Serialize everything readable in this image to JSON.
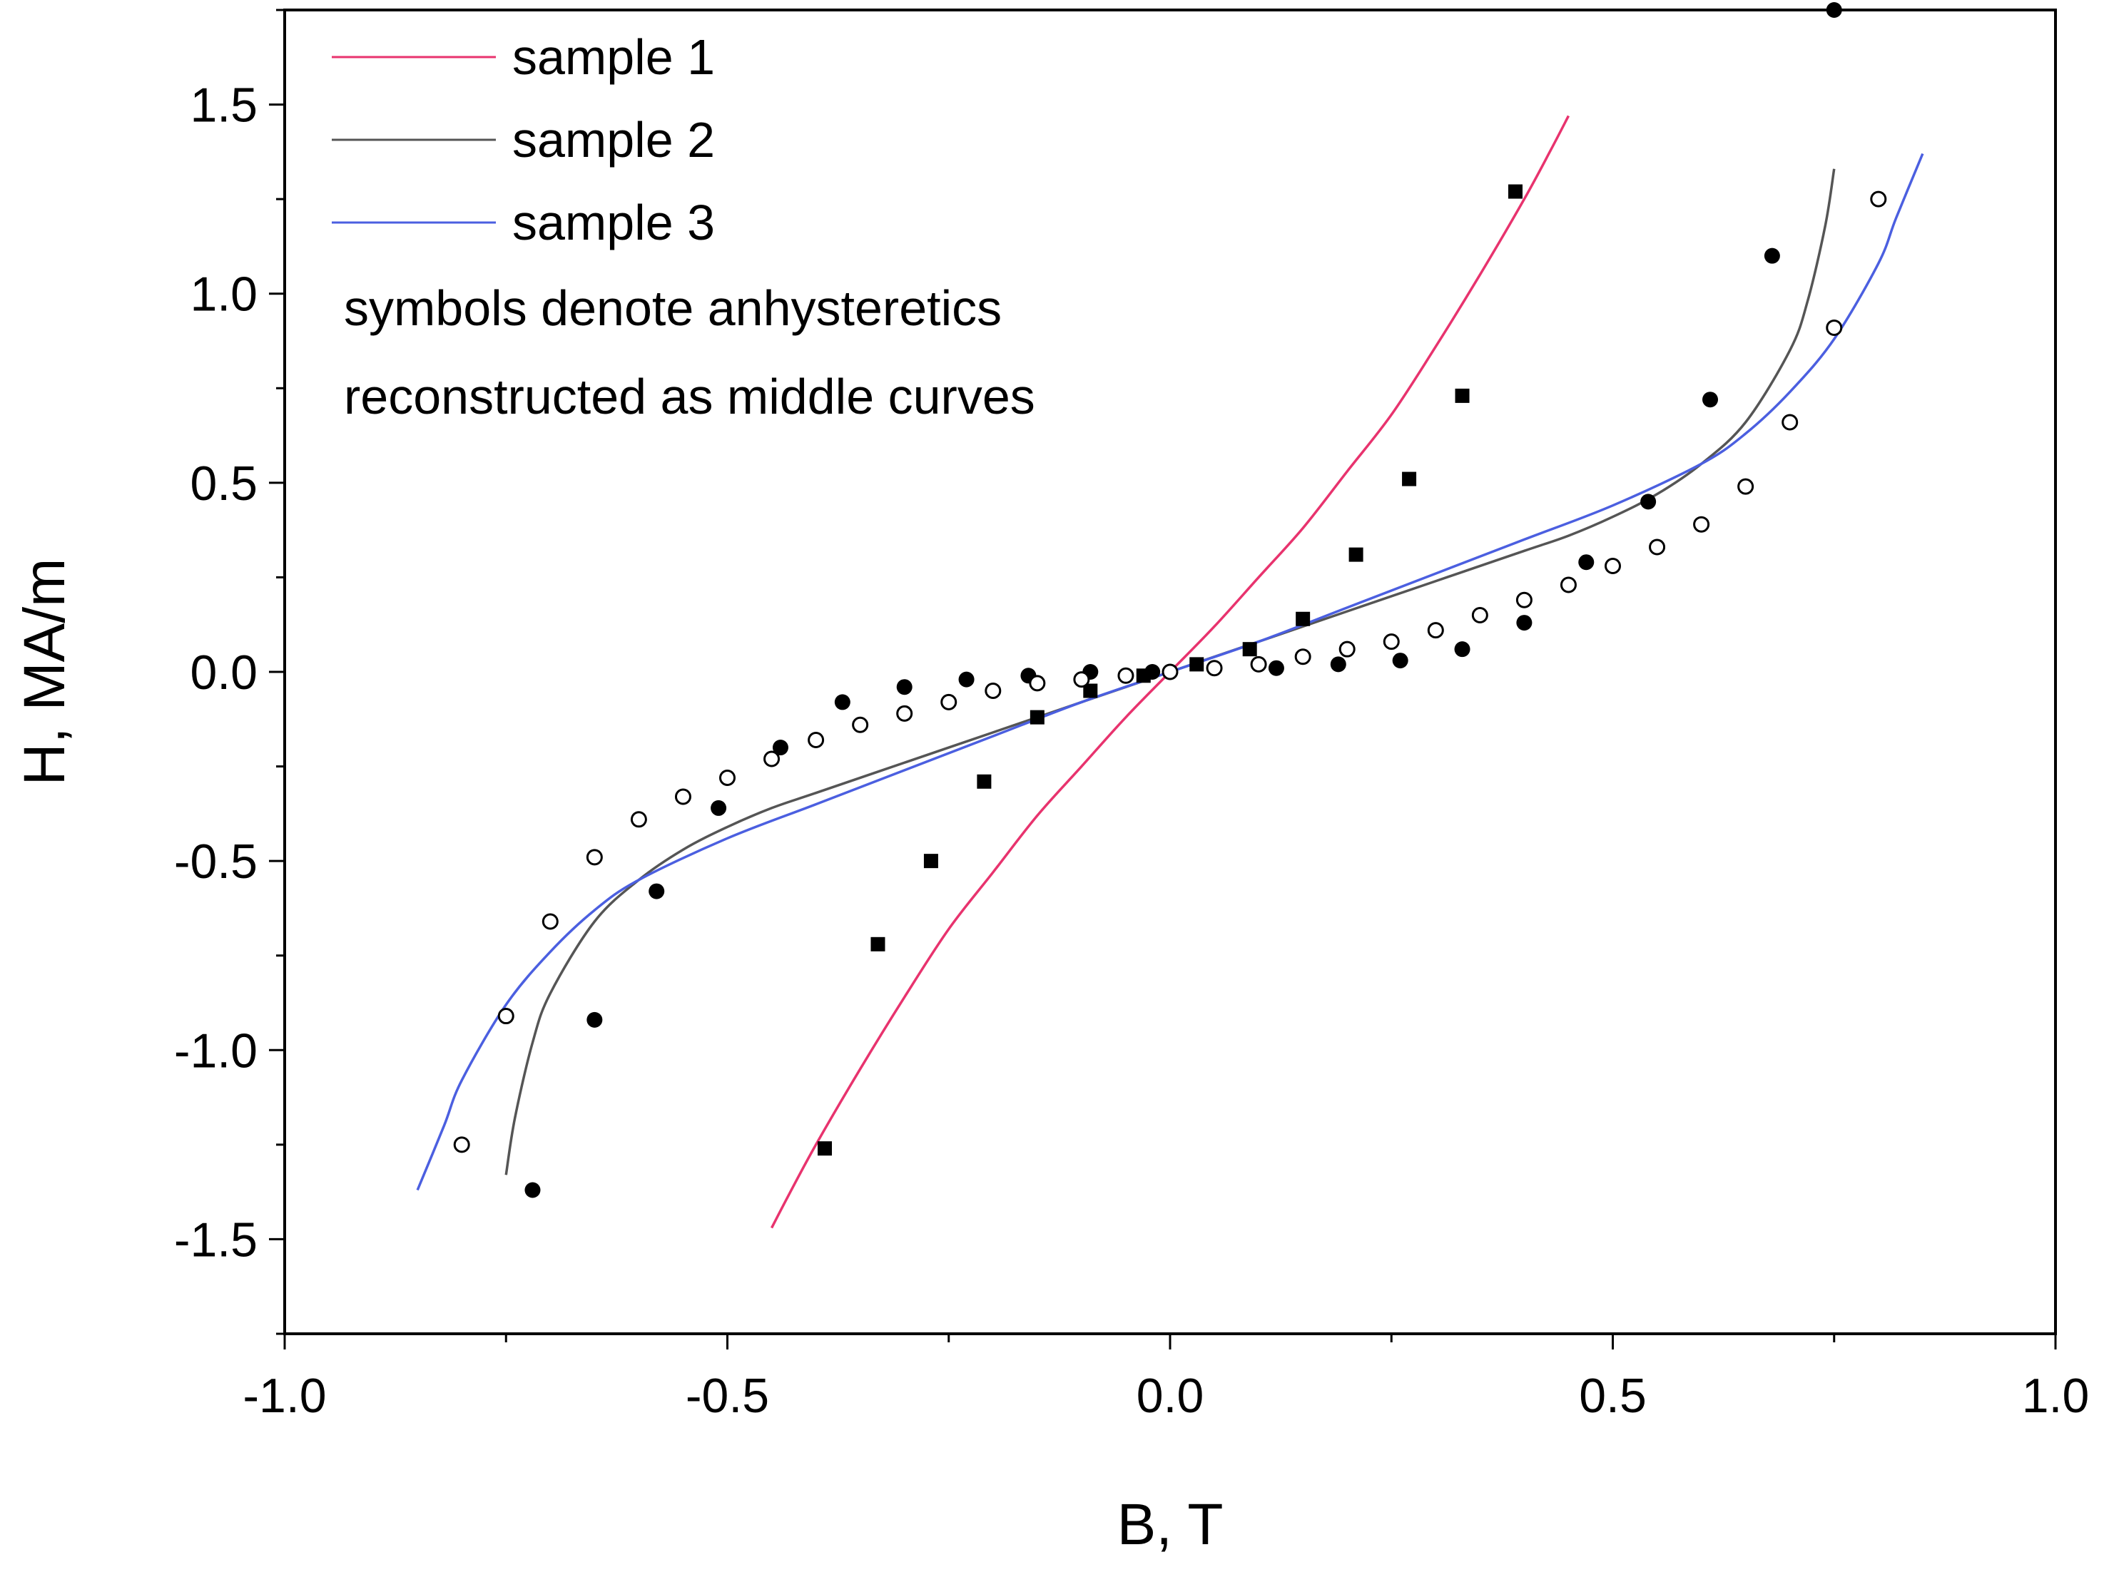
{
  "chart_data": {
    "type": "line",
    "xlabel": "B, T",
    "ylabel": "H, MA/m",
    "xlim": [
      -1.0,
      1.0
    ],
    "ylim": [
      -1.75,
      1.75
    ],
    "xticks": [
      -1.0,
      -0.5,
      0.0,
      0.5,
      1.0
    ],
    "xtick_labels": [
      "-1.0",
      "-0.5",
      "0.0",
      "0.5",
      "1.0"
    ],
    "yticks": [
      -1.5,
      -1.0,
      -0.5,
      0.0,
      0.5,
      1.0,
      1.5
    ],
    "ytick_labels": [
      "-1.5",
      "-1.0",
      "-0.5",
      "0.0",
      "0.5",
      "1.0",
      "1.5"
    ],
    "grid": false,
    "legend_position": "top-left",
    "legend": {
      "series_labels": [
        "sample 1",
        "sample 2",
        "sample 3"
      ],
      "note_lines": [
        "symbols denote anhysteretics",
        "reconstructed as middle curves"
      ]
    },
    "series": [
      {
        "name": "sample 1",
        "color": "#e8336e",
        "x": [
          -0.45,
          -0.43,
          -0.4,
          -0.35,
          -0.3,
          -0.25,
          -0.2,
          -0.15,
          -0.1,
          -0.05,
          0.0,
          0.05,
          0.1,
          0.15,
          0.2,
          0.25,
          0.3,
          0.35,
          0.4,
          0.43,
          0.45
        ],
        "y": [
          -1.47,
          -1.38,
          -1.25,
          -1.05,
          -0.86,
          -0.68,
          -0.53,
          -0.38,
          -0.25,
          -0.12,
          0.0,
          0.12,
          0.25,
          0.38,
          0.53,
          0.68,
          0.86,
          1.05,
          1.25,
          1.38,
          1.47
        ]
      },
      {
        "name": "sample 2",
        "color": "#555555",
        "x": [
          -0.75,
          -0.74,
          -0.72,
          -0.7,
          -0.65,
          -0.6,
          -0.55,
          -0.5,
          -0.45,
          -0.4,
          -0.3,
          -0.2,
          -0.1,
          0.0,
          0.1,
          0.2,
          0.3,
          0.4,
          0.45,
          0.5,
          0.55,
          0.6,
          0.65,
          0.7,
          0.72,
          0.74,
          0.75
        ],
        "y": [
          -1.33,
          -1.18,
          -0.98,
          -0.85,
          -0.66,
          -0.55,
          -0.47,
          -0.41,
          -0.36,
          -0.32,
          -0.24,
          -0.16,
          -0.08,
          0.0,
          0.08,
          0.16,
          0.24,
          0.32,
          0.36,
          0.41,
          0.47,
          0.55,
          0.66,
          0.85,
          0.98,
          1.18,
          1.33
        ]
      },
      {
        "name": "sample 3",
        "color": "#4b5fe0",
        "x": [
          -0.85,
          -0.82,
          -0.8,
          -0.75,
          -0.7,
          -0.65,
          -0.6,
          -0.5,
          -0.4,
          -0.3,
          -0.2,
          -0.1,
          0.0,
          0.1,
          0.2,
          0.3,
          0.4,
          0.5,
          0.6,
          0.65,
          0.7,
          0.75,
          0.8,
          0.82,
          0.85
        ],
        "y": [
          -1.37,
          -1.2,
          -1.08,
          -0.88,
          -0.74,
          -0.63,
          -0.55,
          -0.44,
          -0.35,
          -0.26,
          -0.17,
          -0.08,
          0.0,
          0.08,
          0.17,
          0.26,
          0.35,
          0.44,
          0.55,
          0.63,
          0.74,
          0.88,
          1.08,
          1.2,
          1.37
        ]
      }
    ],
    "scatter_series": [
      {
        "name": "sample 1 anhysteretic",
        "marker": "square-filled",
        "x": [
          -0.39,
          -0.33,
          -0.27,
          -0.21,
          -0.15,
          -0.09,
          -0.03,
          0.03,
          0.09,
          0.15,
          0.21,
          0.27,
          0.33,
          0.39
        ],
        "y": [
          -1.26,
          -0.72,
          -0.5,
          -0.29,
          -0.12,
          -0.05,
          -0.01,
          0.02,
          0.06,
          0.14,
          0.31,
          0.51,
          0.73,
          1.27
        ]
      },
      {
        "name": "sample 2 anhysteretic",
        "marker": "circle-filled",
        "x": [
          -0.72,
          -0.65,
          -0.58,
          -0.51,
          -0.44,
          -0.37,
          -0.3,
          -0.23,
          -0.16,
          -0.09,
          -0.02,
          0.05,
          0.12,
          0.19,
          0.26,
          0.33,
          0.4,
          0.47,
          0.54,
          0.61,
          0.68,
          0.75
        ],
        "y": [
          -1.37,
          -0.92,
          -0.58,
          -0.36,
          -0.2,
          -0.08,
          -0.04,
          -0.02,
          -0.01,
          0.0,
          0.0,
          0.01,
          0.01,
          0.02,
          0.03,
          0.06,
          0.13,
          0.29,
          0.45,
          0.72,
          1.1,
          1.75
        ]
      },
      {
        "name": "sample 3 anhysteretic",
        "marker": "circle-open",
        "x": [
          -0.8,
          -0.75,
          -0.7,
          -0.65,
          -0.6,
          -0.55,
          -0.5,
          -0.45,
          -0.4,
          -0.35,
          -0.3,
          -0.25,
          -0.2,
          -0.15,
          -0.1,
          -0.05,
          0.0,
          0.05,
          0.1,
          0.15,
          0.2,
          0.25,
          0.3,
          0.35,
          0.4,
          0.45,
          0.5,
          0.55,
          0.6,
          0.65,
          0.7,
          0.75,
          0.8
        ],
        "y": [
          -1.25,
          -0.91,
          -0.66,
          -0.49,
          -0.39,
          -0.33,
          -0.28,
          -0.23,
          -0.18,
          -0.14,
          -0.11,
          -0.08,
          -0.05,
          -0.03,
          -0.02,
          -0.01,
          0.0,
          0.01,
          0.02,
          0.04,
          0.06,
          0.08,
          0.11,
          0.15,
          0.19,
          0.23,
          0.28,
          0.33,
          0.39,
          0.49,
          0.66,
          0.91,
          1.25
        ]
      }
    ]
  }
}
